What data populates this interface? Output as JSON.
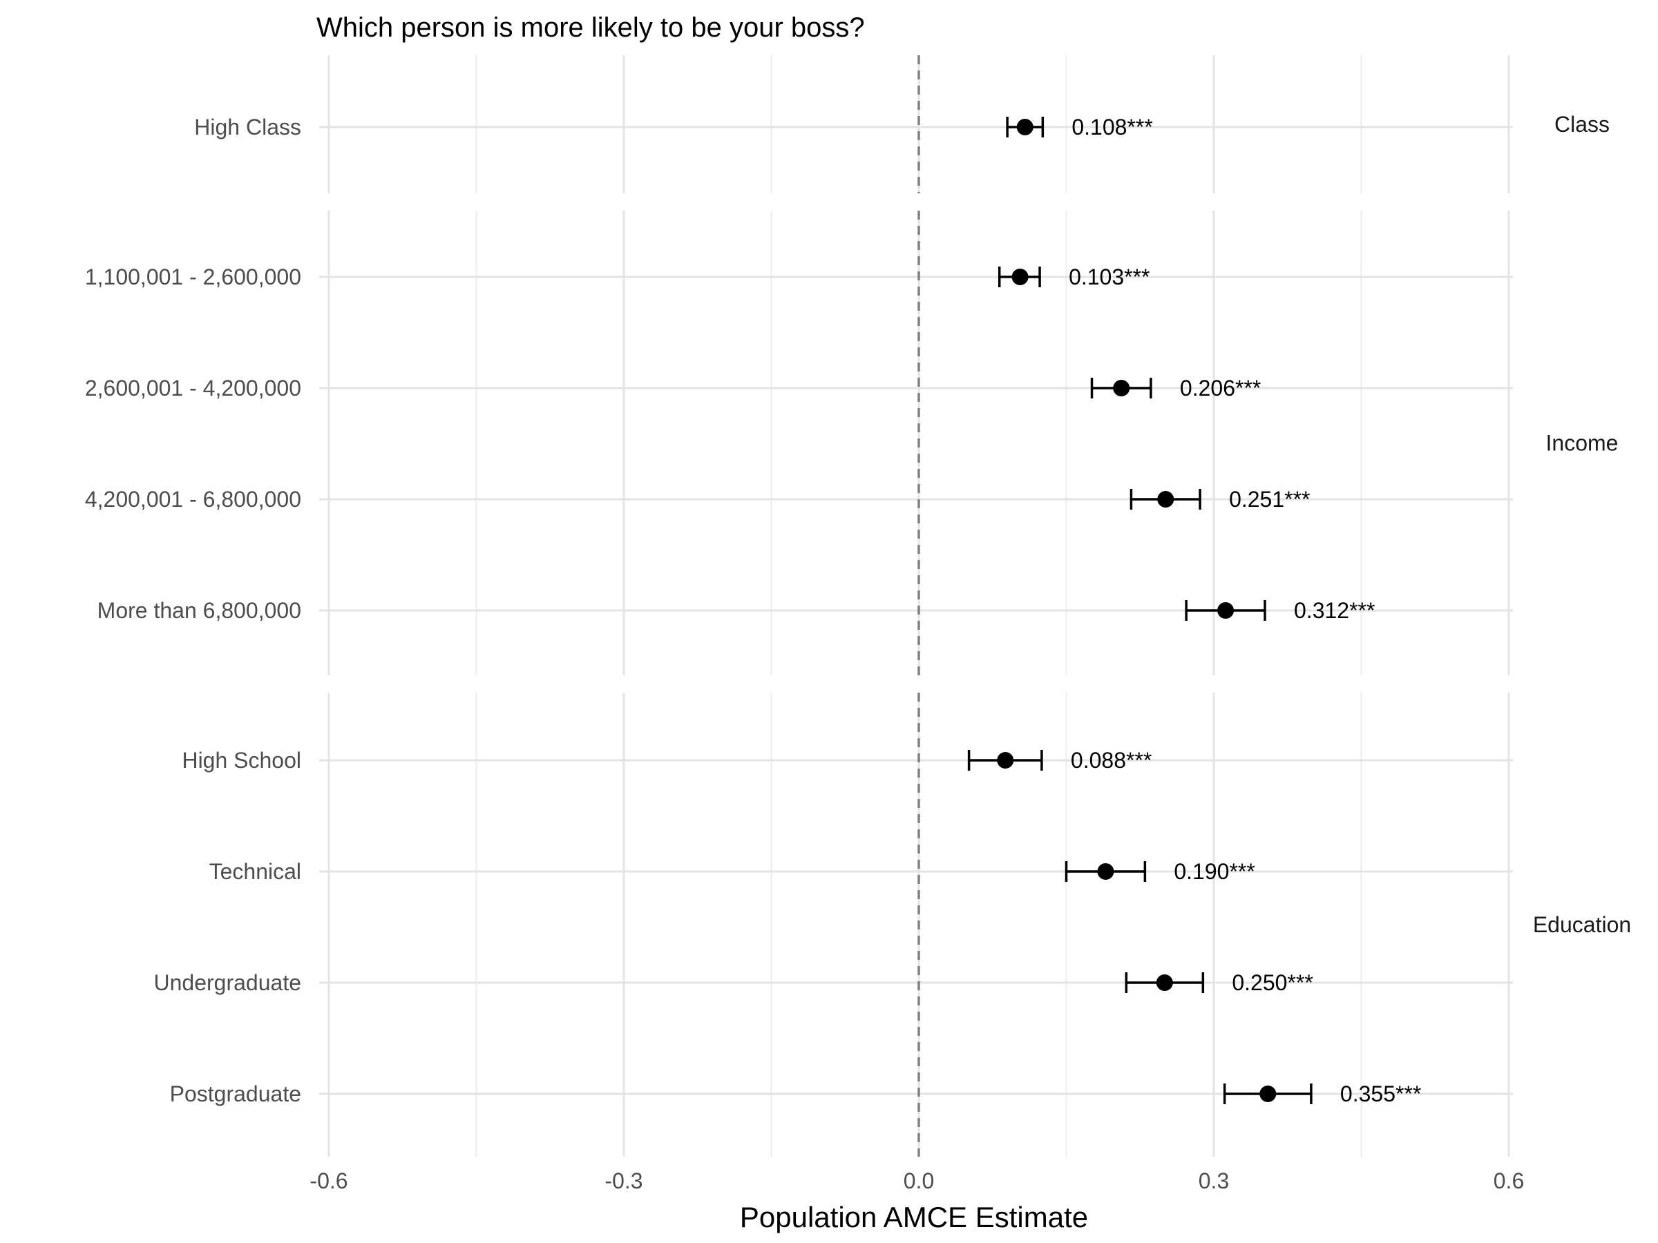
{
  "chart_data": {
    "type": "scatter",
    "title": "Which person is more likely to be your boss?",
    "xlabel": "Population AMCE Estimate",
    "ylabel": "",
    "xlim": [
      -0.6,
      0.62
    ],
    "x_ticks": [
      -0.6,
      -0.3,
      0.0,
      0.3,
      0.6
    ],
    "x_tick_labels": [
      "-0.6",
      "-0.3",
      "0.0",
      "0.3",
      "0.6"
    ],
    "reference_line": 0.0,
    "grid": true,
    "facets": [
      {
        "name": "Class",
        "items": [
          {
            "label": "High Class",
            "estimate": 0.108,
            "lower": 0.09,
            "upper": 0.126,
            "value_label": "0.108***"
          }
        ]
      },
      {
        "name": "Income",
        "items": [
          {
            "label": "1,100,001 - 2,600,000",
            "estimate": 0.103,
            "lower": 0.082,
            "upper": 0.123,
            "value_label": "0.103***"
          },
          {
            "label": "2,600,001 - 4,200,000",
            "estimate": 0.206,
            "lower": 0.176,
            "upper": 0.236,
            "value_label": "0.206***"
          },
          {
            "label": "4,200,001 - 6,800,000",
            "estimate": 0.251,
            "lower": 0.216,
            "upper": 0.286,
            "value_label": "0.251***"
          },
          {
            "label": "More than 6,800,000",
            "estimate": 0.312,
            "lower": 0.272,
            "upper": 0.352,
            "value_label": "0.312***"
          }
        ]
      },
      {
        "name": "Education",
        "items": [
          {
            "label": "High School",
            "estimate": 0.088,
            "lower": 0.051,
            "upper": 0.125,
            "value_label": "0.088***"
          },
          {
            "label": "Technical",
            "estimate": 0.19,
            "lower": 0.15,
            "upper": 0.23,
            "value_label": "0.190***"
          },
          {
            "label": "Undergraduate",
            "estimate": 0.25,
            "lower": 0.211,
            "upper": 0.289,
            "value_label": "0.250***"
          },
          {
            "label": "Postgraduate",
            "estimate": 0.355,
            "lower": 0.311,
            "upper": 0.399,
            "value_label": "0.355***"
          }
        ]
      }
    ]
  }
}
